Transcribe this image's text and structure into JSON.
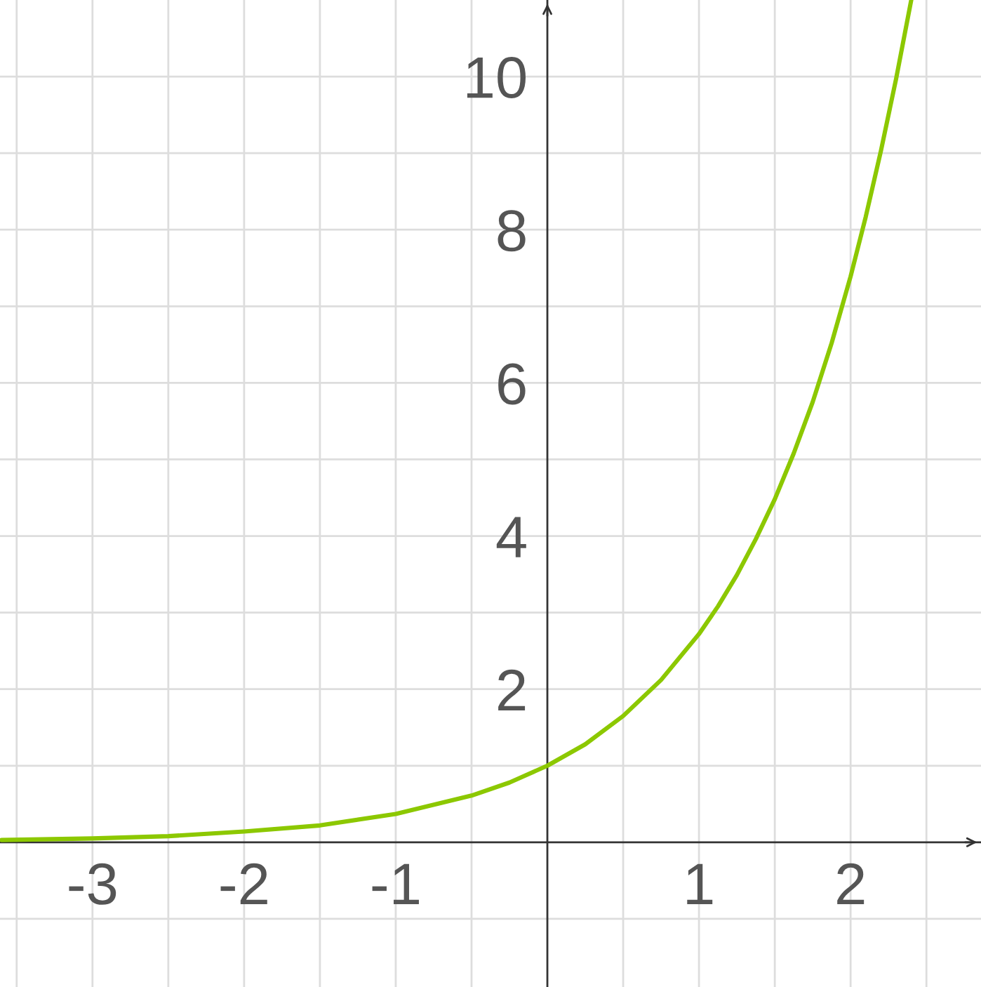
{
  "chart_data": {
    "type": "line",
    "x": [
      -3.6,
      -3,
      -2.5,
      -2,
      -1.5,
      -1,
      -0.5,
      -0.25,
      0,
      0.25,
      0.5,
      0.75,
      1,
      1.125,
      1.25,
      1.375,
      1.5,
      1.625,
      1.75,
      1.875,
      2,
      2.1,
      2.2,
      2.3,
      2.4
    ],
    "series": [
      {
        "color": "#8cc800",
        "values": [
          0.03,
          0.05,
          0.08,
          0.14,
          0.22,
          0.37,
          0.61,
          0.78,
          1.0,
          1.28,
          1.65,
          2.12,
          2.72,
          3.08,
          3.49,
          3.96,
          4.48,
          5.08,
          5.75,
          6.52,
          7.39,
          8.17,
          9.03,
          9.97,
          11.0
        ]
      }
    ],
    "xlim": [
      -3.61,
      2.86
    ],
    "ylim": [
      -1.89,
      11.0
    ],
    "xticks": [
      {
        "value": -3.5,
        "label": null
      },
      -3,
      {
        "value": -2.5,
        "label": null
      },
      -2,
      {
        "value": -1.5,
        "label": null
      },
      -1,
      {
        "value": -0.5,
        "label": null
      },
      {
        "value": 0.5,
        "label": null
      },
      1,
      {
        "value": 1.5,
        "label": null
      },
      2,
      {
        "value": 2.5,
        "label": null
      }
    ],
    "yticks": [
      {
        "value": -1,
        "label": null
      },
      {
        "value": 1,
        "label": null
      },
      2,
      {
        "value": 3,
        "label": null
      },
      4,
      {
        "value": 5,
        "label": null
      },
      6,
      {
        "value": 7,
        "label": null
      },
      8,
      {
        "value": 9,
        "label": null
      },
      10
    ],
    "grid": true,
    "marker": "none",
    "line_style": "solid"
  }
}
